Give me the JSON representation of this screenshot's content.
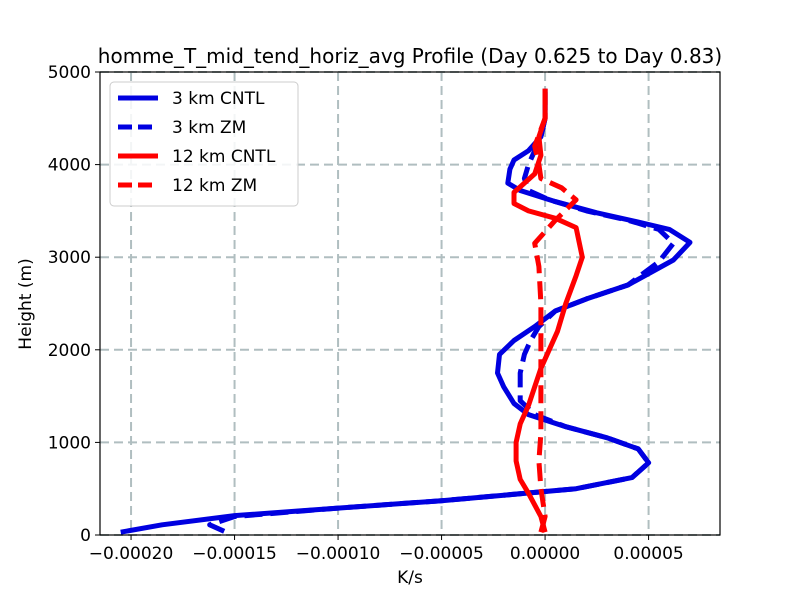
{
  "chart_data": {
    "type": "line",
    "title": "homme_T_mid_tend_horiz_avg Profile (Day 0.625 to Day 0.83)",
    "xlabel": "K/s",
    "ylabel": "Height (m)",
    "xlim": [
      -0.000215,
      8.45e-05
    ],
    "ylim": [
      0,
      5000
    ],
    "x_ticks": [
      -0.0002,
      -0.00015,
      -0.0001,
      -5e-05,
      0,
      5e-05
    ],
    "x_tick_labels": [
      "−0.00020",
      "−0.00015",
      "−0.00010",
      "−0.00005",
      "0.00000",
      "0.00005"
    ],
    "y_ticks": [
      0,
      1000,
      2000,
      3000,
      4000,
      5000
    ],
    "y_tick_labels": [
      "0",
      "1000",
      "2000",
      "3000",
      "4000",
      "5000"
    ],
    "grid": true,
    "legend_position": "upper-left",
    "series": [
      {
        "name": "3 km CNTL",
        "color": "#0000e0",
        "dash": "solid",
        "points": [
          [
            -0.000205,
            30
          ],
          [
            -0.000185,
            110
          ],
          [
            -0.00015,
            210
          ],
          [
            -0.0001,
            290
          ],
          [
            -5e-05,
            370
          ],
          [
            -2e-05,
            430
          ],
          [
            1.5e-05,
            500
          ],
          [
            4.2e-05,
            620
          ],
          [
            5e-05,
            780
          ],
          [
            4.5e-05,
            930
          ],
          [
            3e-05,
            1050
          ],
          [
            1e-05,
            1170
          ],
          [
            -8e-06,
            1300
          ],
          [
            -1.5e-05,
            1420
          ],
          [
            -2e-05,
            1600
          ],
          [
            -2.3e-05,
            1750
          ],
          [
            -2.2e-05,
            1950
          ],
          [
            -1.5e-05,
            2100
          ],
          [
            -5e-06,
            2250
          ],
          [
            5e-06,
            2420
          ],
          [
            2e-05,
            2550
          ],
          [
            4e-05,
            2700
          ],
          [
            6.2e-05,
            2970
          ],
          [
            7e-05,
            3160
          ],
          [
            6e-05,
            3300
          ],
          [
            4.5e-05,
            3380
          ],
          [
            2.5e-05,
            3480
          ],
          [
            5e-06,
            3600
          ],
          [
            -1.2e-05,
            3720
          ],
          [
            -1.8e-05,
            3800
          ],
          [
            -1.7e-05,
            3950
          ],
          [
            -1.5e-05,
            4050
          ],
          [
            -8e-06,
            4150
          ],
          [
            -2e-06,
            4300
          ],
          [
            0,
            4500
          ],
          [
            0,
            4820
          ]
        ]
      },
      {
        "name": "3 km ZM",
        "color": "#0000e0",
        "dash": "dashed",
        "points": [
          [
            -0.000155,
            40
          ],
          [
            -0.000162,
            110
          ],
          [
            -0.00015,
            200
          ],
          [
            -0.0001,
            290
          ],
          [
            -5e-05,
            370
          ],
          [
            -2e-05,
            430
          ],
          [
            1.5e-05,
            500
          ],
          [
            4.2e-05,
            620
          ],
          [
            5e-05,
            780
          ],
          [
            4.5e-05,
            930
          ],
          [
            3e-05,
            1050
          ],
          [
            1e-05,
            1170
          ],
          [
            -5e-06,
            1300
          ],
          [
            -1.2e-05,
            1450
          ],
          [
            -1.2e-05,
            1600
          ],
          [
            -1.2e-05,
            1750
          ],
          [
            -1e-05,
            1950
          ],
          [
            -7e-06,
            2100
          ],
          [
            -3e-06,
            2250
          ],
          [
            5e-06,
            2420
          ],
          [
            2e-05,
            2550
          ],
          [
            4e-05,
            2700
          ],
          [
            5.5e-05,
            2950
          ],
          [
            6.2e-05,
            3150
          ],
          [
            5.5e-05,
            3300
          ],
          [
            4e-05,
            3400
          ],
          [
            2e-05,
            3500
          ],
          [
            2e-06,
            3620
          ],
          [
            -8e-06,
            3720
          ],
          [
            -1e-05,
            3850
          ],
          [
            -8e-06,
            4000
          ],
          [
            -5e-06,
            4150
          ],
          [
            -2e-06,
            4300
          ],
          [
            0,
            4500
          ],
          [
            0,
            4820
          ]
        ]
      },
      {
        "name": "12 km CNTL",
        "color": "#ff0000",
        "dash": "solid",
        "points": [
          [
            0,
            30
          ],
          [
            -2e-06,
            200
          ],
          [
            -8e-06,
            450
          ],
          [
            -1.2e-05,
            600
          ],
          [
            -1.4e-05,
            800
          ],
          [
            -1.4e-05,
            1000
          ],
          [
            -1.2e-05,
            1200
          ],
          [
            -8e-06,
            1400
          ],
          [
            -5e-06,
            1600
          ],
          [
            -2e-06,
            1800
          ],
          [
            2e-06,
            2000
          ],
          [
            6e-06,
            2200
          ],
          [
            1e-05,
            2500
          ],
          [
            1.5e-05,
            2800
          ],
          [
            1.8e-05,
            3000
          ],
          [
            1.5e-05,
            3320
          ],
          [
            5e-06,
            3420
          ],
          [
            -8e-06,
            3500
          ],
          [
            -1.5e-05,
            3580
          ],
          [
            -1.5e-05,
            3700
          ],
          [
            -1e-05,
            3800
          ],
          [
            -5e-06,
            3900
          ],
          [
            -2e-06,
            4100
          ],
          [
            -3e-06,
            4300
          ],
          [
            0,
            4500
          ],
          [
            0,
            4820
          ]
        ]
      },
      {
        "name": "12 km ZM",
        "color": "#ff0000",
        "dash": "dashed",
        "points": [
          [
            -2e-06,
            30
          ],
          [
            0,
            200
          ],
          [
            -2e-06,
            500
          ],
          [
            -3e-06,
            800
          ],
          [
            -2e-06,
            1100
          ],
          [
            -2e-06,
            1500
          ],
          [
            -2e-06,
            2000
          ],
          [
            -2e-06,
            2500
          ],
          [
            -3e-06,
            2900
          ],
          [
            -5e-06,
            3150
          ],
          [
            5e-06,
            3400
          ],
          [
            1.5e-05,
            3620
          ],
          [
            8e-06,
            3750
          ],
          [
            -2e-06,
            3850
          ],
          [
            -3e-06,
            4000
          ],
          [
            -5e-06,
            4200
          ],
          [
            0,
            4500
          ],
          [
            0,
            4820
          ]
        ]
      }
    ]
  }
}
